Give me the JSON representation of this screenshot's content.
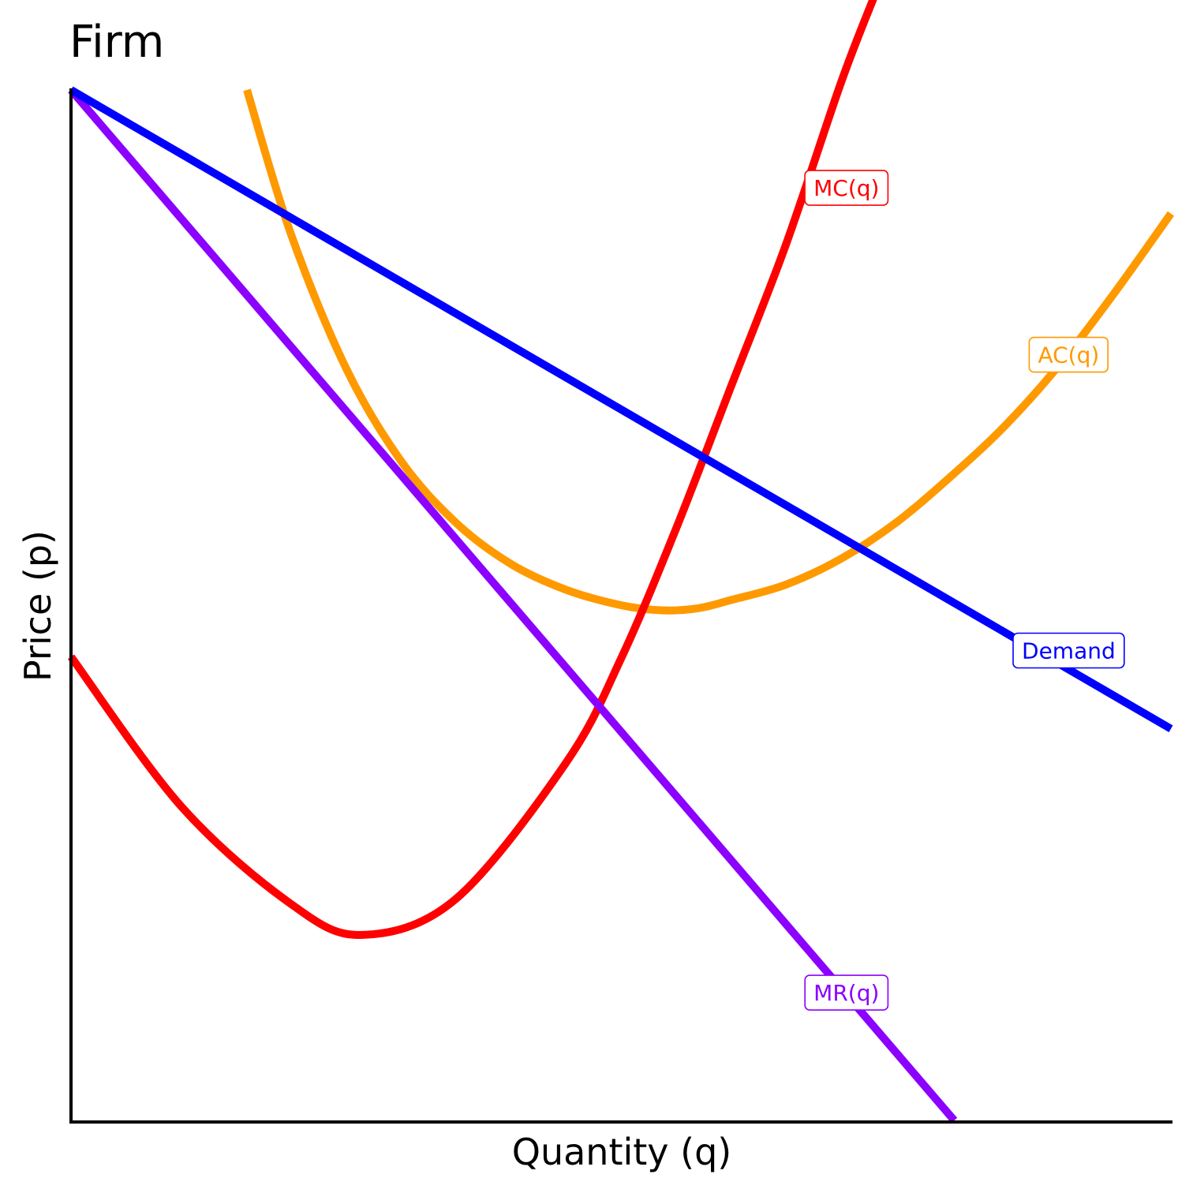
{
  "chart_data": {
    "type": "line",
    "title": "Firm",
    "xlabel": "Quantity (q)",
    "ylabel": "Price (p)",
    "xlim": [
      0,
      10
    ],
    "ylim": [
      0,
      10
    ],
    "grid": false,
    "legend": "none",
    "series": [
      {
        "name": "Demand",
        "color": "#0000ff",
        "x": [
          0,
          10
        ],
        "y": [
          10,
          3.8
        ]
      },
      {
        "name": "MR(q)",
        "color": "#8b00ff",
        "x": [
          0,
          8.03
        ],
        "y": [
          10,
          0
        ]
      },
      {
        "name": "MC(q)",
        "color": "#ff0000",
        "x": [
          0,
          1,
          2,
          2.65,
          3.5,
          4.5,
          5,
          5.5,
          6,
          6.5,
          7,
          7.3
        ],
        "y": [
          4.5,
          3.05,
          2.1,
          1.8,
          2.15,
          3.47,
          4.48,
          5.74,
          7.12,
          8.5,
          10.07,
          10.9
        ]
      },
      {
        "name": "AC(q)",
        "color": "#ff9900",
        "x": [
          1.6,
          2,
          2.5,
          3,
          3.5,
          4,
          4.5,
          5,
          5.37,
          5.7,
          6,
          6.5,
          7,
          7.5,
          8,
          8.5,
          9,
          9.5,
          10
        ],
        "y": [
          10,
          8.6,
          7.3,
          6.4,
          5.8,
          5.4,
          5.15,
          5.0,
          4.95,
          4.97,
          5.05,
          5.2,
          5.45,
          5.8,
          6.25,
          6.75,
          7.35,
          8.05,
          8.8
        ]
      }
    ],
    "annotations": [
      {
        "text": "MC(q)",
        "series": "MC(q)",
        "x": 7.05,
        "y": 9.05
      },
      {
        "text": "AC(q)",
        "series": "AC(q)",
        "x": 9.07,
        "y": 7.43
      },
      {
        "text": "Demand",
        "series": "Demand",
        "x": 9.07,
        "y": 4.56
      },
      {
        "text": "MR(q)",
        "series": "MR(q)",
        "x": 7.05,
        "y": 1.24
      }
    ]
  }
}
